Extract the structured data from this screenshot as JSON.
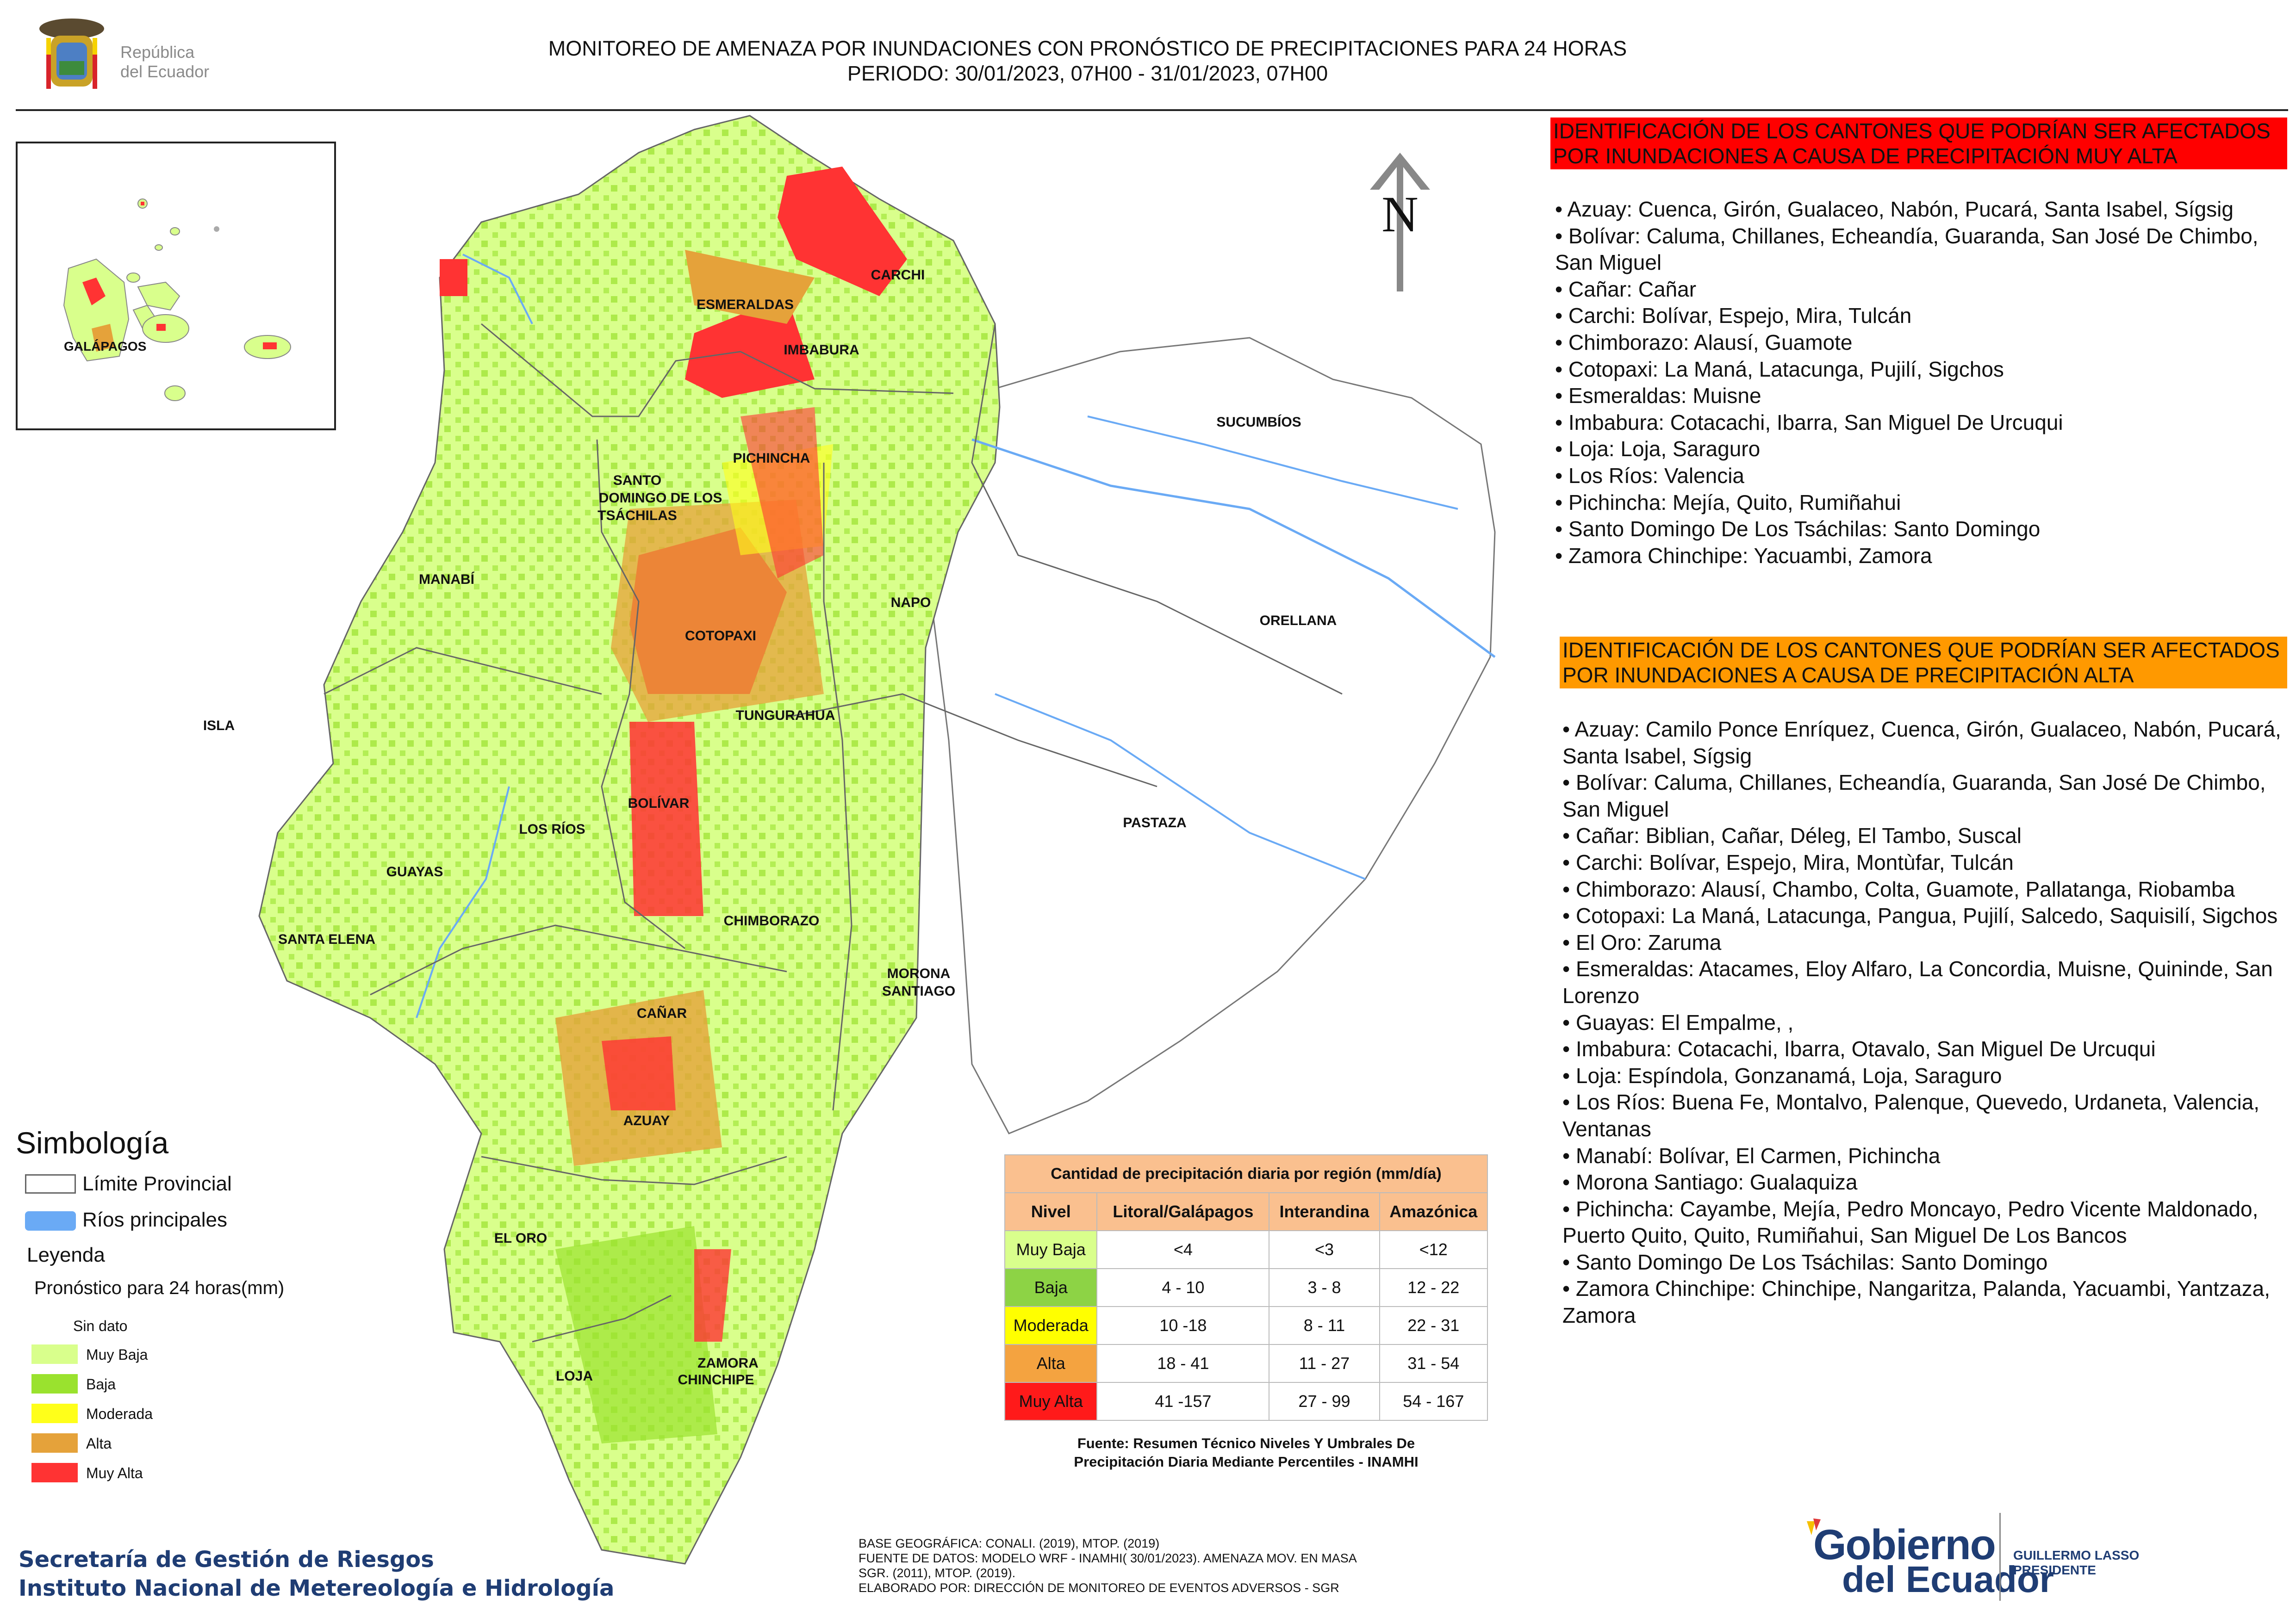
{
  "header": {
    "title_line1": "MONITOREO DE AMENAZA POR INUNDACIONES  CON PRONÓSTICO DE  PRECIPITACIONES PARA 24 HORAS",
    "title_line2": "PERIODO: 30/01/2023, 07H00 - 31/01/2023, 07H00"
  },
  "logo_republica": {
    "line1": "República",
    "line2": "del Ecuador"
  },
  "map": {
    "north_label": "N",
    "provinces": [
      "CARCHI",
      "ESMERALDAS",
      "IMBABURA",
      "SUCUMBÍOS",
      "PICHINCHA",
      "SANTO",
      "DOMINGO DE LOS",
      "TSÁCHILAS",
      "MANABÍ",
      "NAPO",
      "ORELLANA",
      "COTOPAXI",
      "ISLA",
      "TUNGURAHUA",
      "BOLÍVAR",
      "LOS RÍOS",
      "PASTAZA",
      "GUAYAS",
      "CHIMBORAZO",
      "SANTA ELENA",
      "MORONA",
      "SANTIAGO",
      "CAÑAR",
      "AZUAY",
      "EL ORO",
      "LOJA",
      "ZAMORA",
      "CHINCHIPE"
    ],
    "inset_label": "GALÁPAGOS"
  },
  "very_high_panel": {
    "heading": "IDENTIFICACIÓN DE LOS CANTONES QUE PODRÍAN SER AFECTADOS POR INUNDACIONES  A CAUSA DE PRECIPITACIÓN MUY ALTA",
    "color": "#ff0000",
    "items": [
      "• Azuay: Cuenca, Girón, Gualaceo, Nabón, Pucará, Santa Isabel, Sígsig",
      "• Bolívar: Caluma, Chillanes, Echeandía, Guaranda, San José De Chimbo, San Miguel",
      "• Cañar: Cañar",
      "• Carchi: Bolívar, Espejo, Mira, Tulcán",
      "• Chimborazo: Alausí, Guamote",
      "• Cotopaxi: La Maná, Latacunga, Pujilí, Sigchos",
      "• Esmeraldas: Muisne",
      "• Imbabura: Cotacachi, Ibarra, San Miguel De Urcuqui",
      "• Loja: Loja, Saraguro",
      "• Los Ríos: Valencia",
      "• Pichincha: Mejía, Quito, Rumiñahui",
      "• Santo Domingo De Los Tsáchilas: Santo Domingo",
      "• Zamora Chinchipe: Yacuambi, Zamora"
    ]
  },
  "high_panel": {
    "heading": "IDENTIFICACIÓN DE LOS CANTONES QUE  PODRÍAN SER AFECTADOS POR INUNDACIONES  A CAUSA DE PRECIPITACIÓN ALTA",
    "color": "#ff9900",
    "items": [
      "• Azuay: Camilo Ponce Enríquez, Cuenca, Girón, Gualaceo, Nabón, Pucará, Santa Isabel, Sígsig",
      "• Bolívar: Caluma, Chillanes, Echeandía, Guaranda, San José De Chimbo, San Miguel",
      "• Cañar: Biblian, Cañar, Déleg, El Tambo, Suscal",
      "• Carchi: Bolívar, Espejo, Mira, Montùfar, Tulcán",
      "• Chimborazo: Alausí, Chambo, Colta, Guamote, Pallatanga, Riobamba",
      "• Cotopaxi: La Maná, Latacunga, Pangua, Pujilí, Salcedo, Saquisilí, Sigchos",
      "• El Oro: Zaruma",
      "• Esmeraldas: Atacames, Eloy Alfaro, La Concordia, Muisne, Quininde, San Lorenzo",
      "• Guayas: El Empalme, ,",
      "• Imbabura: Cotacachi, Ibarra, Otavalo, San Miguel De Urcuqui",
      "• Loja: Espíndola, Gonzanamá, Loja, Saraguro",
      "• Los Ríos: Buena Fe, Montalvo, Palenque, Quevedo, Urdaneta, Valencia, Ventanas",
      "• Manabí: Bolívar, El Carmen, Pichincha",
      "• Morona Santiago: Gualaquiza",
      "• Pichincha: Cayambe, Mejía, Pedro Moncayo, Pedro Vicente Maldonado, Puerto Quito, Quito, Rumiñahui, San Miguel De Los Bancos",
      "• Santo Domingo De Los Tsáchilas: Santo Domingo",
      "• Zamora Chinchipe: Chinchipe, Nangaritza, Palanda, Yacuambi, Yantzaza, Zamora"
    ]
  },
  "legend": {
    "title": "Simbología",
    "boundary_label": "Límite Provincial",
    "rivers_label": "Ríos principales",
    "rivers_color": "#6aaaf5",
    "subtitle": "Leyenda",
    "forecast_label": "Pronóstico para 24 horas(mm)",
    "classes": [
      {
        "label": "Sin dato",
        "color": "#ffffff"
      },
      {
        "label": " Muy Baja",
        "color": "#d9ff8c"
      },
      {
        "label": "Baja",
        "color": "#9ae22e"
      },
      {
        "label": "Moderada",
        "color": "#ffff1a"
      },
      {
        "label": "Alta",
        "color": "#e5a23a"
      },
      {
        "label": "Muy Alta",
        "color": "#ff3333"
      }
    ]
  },
  "precip_table": {
    "title": "Cantidad de precipitación diaria por región (mm/día)",
    "headers": [
      "Nivel",
      "Litoral/Galápagos",
      "Interandina",
      "Amazónica"
    ],
    "rows": [
      {
        "nivel": "Muy Baja",
        "color": "#d9ff8c",
        "litoral": "<4",
        "interandina": "<3",
        "amazonica": "<12"
      },
      {
        "nivel": "Baja",
        "color": "#8dd345",
        "litoral": "4 - 10",
        "interandina": "3 - 8",
        "amazonica": "12 - 22"
      },
      {
        "nivel": "Moderada",
        "color": "#ffff00",
        "litoral": "10 -18",
        "interandina": "8 - 11",
        "amazonica": "22 - 31"
      },
      {
        "nivel": "Alta",
        "color": "#f4a340",
        "litoral": "18 - 41",
        "interandina": "11 - 27",
        "amazonica": "31 - 54"
      },
      {
        "nivel": "Muy Alta",
        "color": "#ff1a1a",
        "litoral": "41 -157",
        "interandina": "27 - 99",
        "amazonica": "54 - 167"
      }
    ],
    "source_line1": "Fuente: Resumen Técnico Niveles Y Umbrales De",
    "source_line2": "Precipitación Diaria Mediante Percentiles - INAMHI"
  },
  "footer": {
    "left_line1": "Secretaría de Gestión de Riesgos",
    "left_line2": "Instituto Nacional de Metereología e Hidrología",
    "center_line1": "BASE GEOGRÁFICA: CONALI. (2019), MTOP. (2019)",
    "center_line2": "FUENTE DE DATOS: MODELO WRF - INAMHI( 30/01/2023).  AMENAZA MOV. EN MASA",
    "center_line3": "SGR. (2011), MTOP. (2019).",
    "center_line4": "ELABORADO POR: DIRECCIÓN DE MONITOREO DE EVENTOS ADVERSOS - SGR",
    "gob_line1": "Gobierno",
    "gob_line2": "del Ecuador",
    "president_line1": "GUILLERMO LASSO",
    "president_line2": "PRESIDENTE"
  }
}
